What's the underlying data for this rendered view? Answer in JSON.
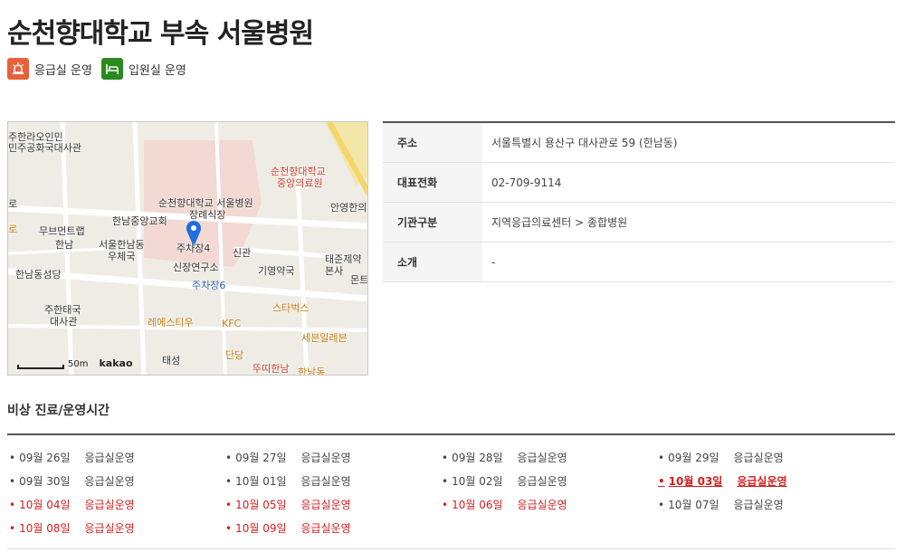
{
  "hospital": {
    "name": "순천향대학교 부속 서울병원"
  },
  "badges": [
    {
      "label": "응급실 운영",
      "icon": "emergency-light-icon",
      "color": "#e8613a"
    },
    {
      "label": "입원실 운영",
      "icon": "hospital-bed-icon",
      "color": "#2b8a1f"
    }
  ],
  "map": {
    "labels": [
      "주한라오인민",
      "민주공화국대사관",
      "순천향대학교",
      "중앙의료원",
      "순천향대학교 서울병원",
      "장례식장",
      "안영한의",
      "한남중앙교회",
      "무브먼트랩",
      "한남",
      "서울한남동",
      "우체국",
      "주차장4",
      "신관",
      "태준제약",
      "본사",
      "기영약국",
      "신장연구소",
      "한남동성당",
      "주차장6",
      "주한태국",
      "대사관",
      "스타벅스",
      "레에스티우",
      "KFC",
      "세븐일레븐",
      "단당",
      "태성",
      "뚜띠한남",
      "한남동",
      "몬트",
      "로",
      "로"
    ],
    "scale": "50m",
    "provider": "kakao"
  },
  "info": [
    {
      "label": "주소",
      "value": "서울특별시 용산구 대사관로 59 (한남동)"
    },
    {
      "label": "대표전화",
      "value": "02-709-9114"
    },
    {
      "label": "기관구분",
      "value": "지역응급의료센터 > 종합병원"
    },
    {
      "label": "소개",
      "value": "-"
    }
  ],
  "schedule": {
    "title": "비상 진료/운영시간",
    "bullet": "•",
    "items": [
      {
        "date": "09월 26일",
        "status": "응급실운영",
        "type": "normal"
      },
      {
        "date": "09월 27일",
        "status": "응급실운영",
        "type": "normal"
      },
      {
        "date": "09월 28일",
        "status": "응급실운영",
        "type": "normal"
      },
      {
        "date": "09월 29일",
        "status": "응급실운영",
        "type": "normal"
      },
      {
        "date": "09월 30일",
        "status": "응급실운영",
        "type": "normal"
      },
      {
        "date": "10월 01일",
        "status": "응급실운영",
        "type": "normal"
      },
      {
        "date": "10월 02일",
        "status": "응급실운영",
        "type": "normal"
      },
      {
        "date": "10월 03일",
        "status": "응급실운영",
        "type": "today"
      },
      {
        "date": "10월 04일",
        "status": "응급실운영",
        "type": "holiday"
      },
      {
        "date": "10월 05일",
        "status": "응급실운영",
        "type": "holiday"
      },
      {
        "date": "10월 06일",
        "status": "응급실운영",
        "type": "holiday"
      },
      {
        "date": "10월 07일",
        "status": "응급실운영",
        "type": "normal"
      },
      {
        "date": "10월 08일",
        "status": "응급실운영",
        "type": "holiday"
      },
      {
        "date": "10월 09일",
        "status": "응급실운영",
        "type": "holiday"
      }
    ]
  }
}
